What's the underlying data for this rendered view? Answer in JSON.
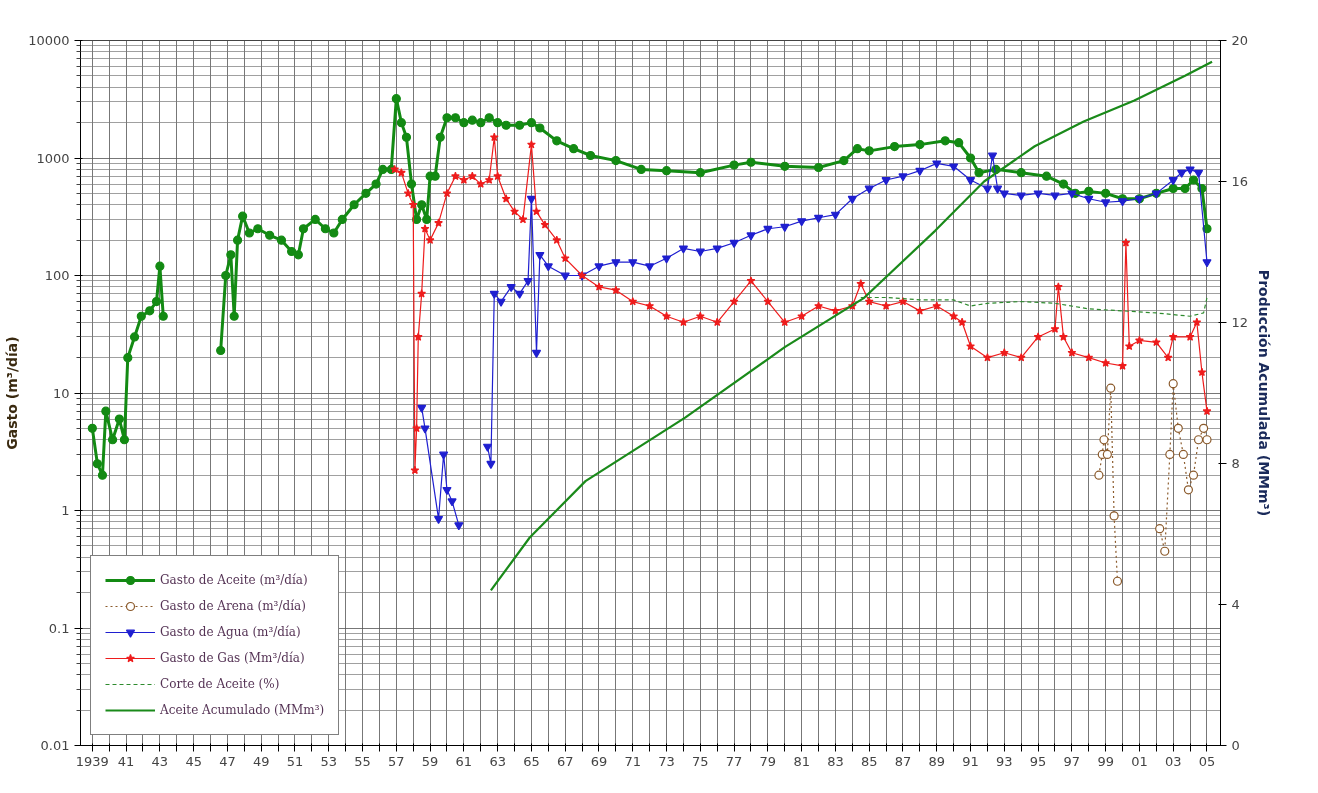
{
  "chart_data": {
    "type": "line",
    "ylabel": "Gasto (m³/día)",
    "y2label": "Producción Acumulada (MMm³)",
    "log": "y",
    "grid": true,
    "legend": "bottom left",
    "xlim": [
      1938.3,
      2005.8
    ],
    "xticks": [
      {
        "value": 1939,
        "label": "1939"
      },
      {
        "value": 1940,
        "label": null
      },
      {
        "value": 1941,
        "label": "41"
      },
      {
        "value": 1942,
        "label": null
      },
      {
        "value": 1943,
        "label": "43"
      },
      {
        "value": 1944,
        "label": null
      },
      {
        "value": 1945,
        "label": "45"
      },
      {
        "value": 1946,
        "label": null
      },
      {
        "value": 1947,
        "label": "47"
      },
      {
        "value": 1948,
        "label": null
      },
      {
        "value": 1949,
        "label": "49"
      },
      {
        "value": 1950,
        "label": null
      },
      {
        "value": 1951,
        "label": "51"
      },
      {
        "value": 1952,
        "label": null
      },
      {
        "value": 1953,
        "label": "53"
      },
      {
        "value": 1954,
        "label": null
      },
      {
        "value": 1955,
        "label": "55"
      },
      {
        "value": 1956,
        "label": null
      },
      {
        "value": 1957,
        "label": "57"
      },
      {
        "value": 1958,
        "label": null
      },
      {
        "value": 1959,
        "label": "59"
      },
      {
        "value": 1960,
        "label": null
      },
      {
        "value": 1961,
        "label": "61"
      },
      {
        "value": 1962,
        "label": null
      },
      {
        "value": 1963,
        "label": "63"
      },
      {
        "value": 1964,
        "label": null
      },
      {
        "value": 1965,
        "label": "65"
      },
      {
        "value": 1966,
        "label": null
      },
      {
        "value": 1967,
        "label": "67"
      },
      {
        "value": 1968,
        "label": null
      },
      {
        "value": 1969,
        "label": "69"
      },
      {
        "value": 1970,
        "label": null
      },
      {
        "value": 1971,
        "label": "71"
      },
      {
        "value": 1972,
        "label": null
      },
      {
        "value": 1973,
        "label": "73"
      },
      {
        "value": 1974,
        "label": null
      },
      {
        "value": 1975,
        "label": "75"
      },
      {
        "value": 1976,
        "label": null
      },
      {
        "value": 1977,
        "label": "77"
      },
      {
        "value": 1978,
        "label": null
      },
      {
        "value": 1979,
        "label": "79"
      },
      {
        "value": 1980,
        "label": null
      },
      {
        "value": 1981,
        "label": "81"
      },
      {
        "value": 1982,
        "label": null
      },
      {
        "value": 1983,
        "label": "83"
      },
      {
        "value": 1984,
        "label": null
      },
      {
        "value": 1985,
        "label": "85"
      },
      {
        "value": 1986,
        "label": null
      },
      {
        "value": 1987,
        "label": "87"
      },
      {
        "value": 1988,
        "label": null
      },
      {
        "value": 1989,
        "label": "89"
      },
      {
        "value": 1990,
        "label": null
      },
      {
        "value": 1991,
        "label": "91"
      },
      {
        "value": 1992,
        "label": null
      },
      {
        "value": 1993,
        "label": "93"
      },
      {
        "value": 1994,
        "label": null
      },
      {
        "value": 1995,
        "label": "95"
      },
      {
        "value": 1996,
        "label": null
      },
      {
        "value": 1997,
        "label": "97"
      },
      {
        "value": 1998,
        "label": null
      },
      {
        "value": 1999,
        "label": "99"
      },
      {
        "value": 2000,
        "label": null
      },
      {
        "value": 2001,
        "label": "01"
      },
      {
        "value": 2002,
        "label": null
      },
      {
        "value": 2003,
        "label": "03"
      },
      {
        "value": 2004,
        "label": null
      },
      {
        "value": 2005,
        "label": "05"
      }
    ],
    "ylim": [
      0.01,
      10000
    ],
    "yticks": [
      0.01,
      0.1,
      1,
      10,
      100,
      1000,
      10000
    ],
    "y2lim": [
      0,
      20
    ],
    "y2ticks": [
      0,
      4,
      8,
      12,
      16,
      20
    ],
    "series": [
      {
        "name": "Gasto de Aceite (m³/día)",
        "color": "#138a13",
        "marker": "circle",
        "line_style": "solid",
        "x": [
          1939.0,
          1939.3,
          1939.6,
          1939.8,
          1940.2,
          1940.6,
          1940.9,
          1941.1,
          1941.5,
          1941.9,
          1942.4,
          1942.8,
          1943.0,
          1943.2,
          1943.4,
          1946.6,
          1946.9,
          1947.2,
          1947.4,
          1947.6,
          1947.9,
          1948.3,
          1948.8,
          1949.5,
          1950.2,
          1950.8,
          1951.2,
          1951.5,
          1952.2,
          1952.8,
          1953.3,
          1953.8,
          1954.5,
          1955.2,
          1955.8,
          1956.2,
          1956.7,
          1957.0,
          1957.3,
          1957.6,
          1957.9,
          1958.2,
          1958.5,
          1958.8,
          1959.0,
          1959.3,
          1959.6,
          1960.0,
          1960.5,
          1961.0,
          1961.5,
          1962.0,
          1962.5,
          1963.0,
          1963.5,
          1964.3,
          1965.0,
          1965.5,
          1966.5,
          1967.5,
          1968.5,
          1970.0,
          1971.5,
          1973.0,
          1975.0,
          1977.0,
          1978.0,
          1980.0,
          1982.0,
          1983.5,
          1984.3,
          1985.0,
          1986.5,
          1988.0,
          1989.5,
          1990.3,
          1991.0,
          1991.5,
          1992.5,
          1994.0,
          1995.5,
          1996.5,
          1997.2,
          1998.0,
          1999.0,
          2000.0,
          2001.0,
          2002.0,
          2003.0,
          2003.7,
          2004.2,
          2004.7,
          2005.0
        ],
        "values": [
          5,
          2.5,
          2,
          7,
          4,
          6,
          4,
          20,
          30,
          45,
          50,
          60,
          120,
          45,
          null,
          23,
          100,
          150,
          45,
          200,
          320,
          230,
          250,
          220,
          200,
          160,
          150,
          250,
          300,
          250,
          230,
          300,
          400,
          500,
          600,
          800,
          800,
          3200,
          2000,
          1500,
          600,
          300,
          400,
          300,
          700,
          700,
          1500,
          2200,
          2200,
          2000,
          2100,
          2000,
          2200,
          2000,
          1900,
          1900,
          2000,
          1800,
          1400,
          1200,
          1050,
          950,
          800,
          780,
          750,
          870,
          920,
          850,
          830,
          950,
          1200,
          1150,
          1250,
          1300,
          1400,
          1350,
          1000,
          750,
          800,
          750,
          700,
          600,
          500,
          520,
          500,
          450,
          450,
          500,
          550,
          550,
          650,
          550,
          250
        ]
      },
      {
        "name": "Gasto de Arena (m³/día)",
        "color": "#8b5a2b",
        "marker": "circle",
        "line_style": "dotted",
        "x": [
          1998.6,
          1998.8,
          1998.9,
          1999.1,
          1999.3,
          1999.5,
          1999.7,
          2000.0,
          2002.2,
          2002.5,
          2002.8,
          2003.0,
          2003.3,
          2003.6,
          2003.9,
          2004.2,
          2004.5,
          2004.8,
          2005.0
        ],
        "values": [
          2,
          3,
          4,
          3,
          11,
          0.9,
          0.25,
          null,
          0.7,
          0.45,
          3,
          12,
          5,
          3,
          1.5,
          2,
          4,
          5,
          4
        ]
      },
      {
        "name": "Gasto de Agua (m³/día)",
        "color": "#1f1fd0",
        "marker": "triangle",
        "line_style": "solid",
        "x": [
          1958.5,
          1958.7,
          1959.5,
          1959.8,
          1960.0,
          1960.3,
          1960.7,
          1961.5,
          1962.4,
          1962.6,
          1962.8,
          1963.2,
          1963.8,
          1964.3,
          1964.8,
          1965.0,
          1965.3,
          1965.5,
          1966.0,
          1967.0,
          1968.0,
          1969.0,
          1970.0,
          1971.0,
          1972.0,
          1973.0,
          1974.0,
          1975.0,
          1976.0,
          1977.0,
          1978.0,
          1979.0,
          1980.0,
          1981.0,
          1982.0,
          1983.0,
          1984.0,
          1985.0,
          1986.0,
          1987.0,
          1988.0,
          1989.0,
          1990.0,
          1991.0,
          1992.0,
          1992.3,
          1992.6,
          1993.0,
          1994.0,
          1995.0,
          1996.0,
          1997.0,
          1998.0,
          1999.0,
          2000.0,
          2001.0,
          2002.0,
          2003.0,
          2003.5,
          2004.0,
          2004.5,
          2005.0
        ],
        "values": [
          7.5,
          5,
          0.85,
          3,
          1.5,
          1.2,
          0.75,
          null,
          3.5,
          2.5,
          70,
          60,
          80,
          70,
          90,
          450,
          22,
          150,
          120,
          100,
          100,
          120,
          130,
          130,
          120,
          140,
          170,
          160,
          170,
          190,
          220,
          250,
          260,
          290,
          310,
          330,
          450,
          550,
          650,
          700,
          780,
          900,
          850,
          650,
          550,
          1050,
          550,
          500,
          480,
          500,
          480,
          500,
          450,
          420,
          430,
          450,
          500,
          650,
          750,
          800,
          750,
          130
        ]
      },
      {
        "name": "Gasto de Gas (Mm³/día)",
        "color": "#ee1c1c",
        "marker": "star",
        "line_style": "solid",
        "x": [
          1956.9,
          1957.3,
          1957.7,
          1958.0,
          1958.1,
          1958.2,
          1958.3,
          1958.5,
          1958.7,
          1959.0,
          1959.5,
          1960.0,
          1960.5,
          1961.0,
          1961.5,
          1962.0,
          1962.5,
          1962.8,
          1963.0,
          1963.5,
          1964.0,
          1964.5,
          1965.0,
          1965.3,
          1965.8,
          1966.5,
          1967.0,
          1968.0,
          1969.0,
          1970.0,
          1971.0,
          1972.0,
          1973.0,
          1974.0,
          1975.0,
          1976.0,
          1977.0,
          1978.0,
          1979.0,
          1980.0,
          1981.0,
          1982.0,
          1983.0,
          1984.0,
          1984.5,
          1985.0,
          1986.0,
          1987.0,
          1988.0,
          1989.0,
          1990.0,
          1990.5,
          1991.0,
          1992.0,
          1993.0,
          1994.0,
          1995.0,
          1996.0,
          1996.2,
          1996.5,
          1997.0,
          1998.0,
          1999.0,
          2000.0,
          2000.2,
          2000.4,
          2001.0,
          2002.0,
          2002.7,
          2003.0,
          2004.0,
          2004.4,
          2004.7,
          2005.0
        ],
        "values": [
          800,
          750,
          500,
          400,
          2.2,
          5,
          30,
          70,
          250,
          200,
          280,
          500,
          700,
          650,
          700,
          600,
          650,
          1500,
          700,
          450,
          350,
          300,
          1300,
          350,
          270,
          200,
          140,
          100,
          80,
          75,
          60,
          55,
          45,
          40,
          45,
          40,
          60,
          90,
          60,
          40,
          45,
          55,
          50,
          55,
          85,
          60,
          55,
          60,
          50,
          55,
          45,
          40,
          25,
          20,
          22,
          20,
          30,
          35,
          80,
          30,
          22,
          20,
          18,
          17,
          190,
          25,
          28,
          27,
          20,
          30,
          30,
          40,
          15,
          7
        ]
      },
      {
        "name": "Corte de Aceite (%)",
        "color": "#2e8b2e",
        "marker": "none",
        "line_style": "dashed",
        "x": [
          1984.5,
          1986.0,
          1988.0,
          1990.0,
          1991.0,
          1992.0,
          1994.0,
          1996.0,
          1998.0,
          2000.0,
          2002.0,
          2004.0,
          2004.8,
          2005.0
        ],
        "values": [
          65,
          65,
          62,
          62,
          55,
          58,
          60,
          58,
          52,
          50,
          48,
          45,
          48,
          65
        ]
      },
      {
        "name": "Aceite Acumulado (MMm³)",
        "color": "#1a8a1a",
        "marker": "none",
        "line_style": "solid",
        "axis": "y2",
        "x": [
          1962.6,
          1964.9,
          1968.2,
          1974.1,
          1980.0,
          1984.7,
          1988.9,
          1991.8,
          1994.8,
          1997.7,
          2000.7,
          2003.7,
          2005.3
        ],
        "values": [
          4.4,
          5.9,
          7.5,
          9.3,
          11.3,
          12.7,
          14.6,
          16.0,
          17.0,
          17.7,
          18.3,
          19.0,
          19.4
        ]
      }
    ]
  }
}
